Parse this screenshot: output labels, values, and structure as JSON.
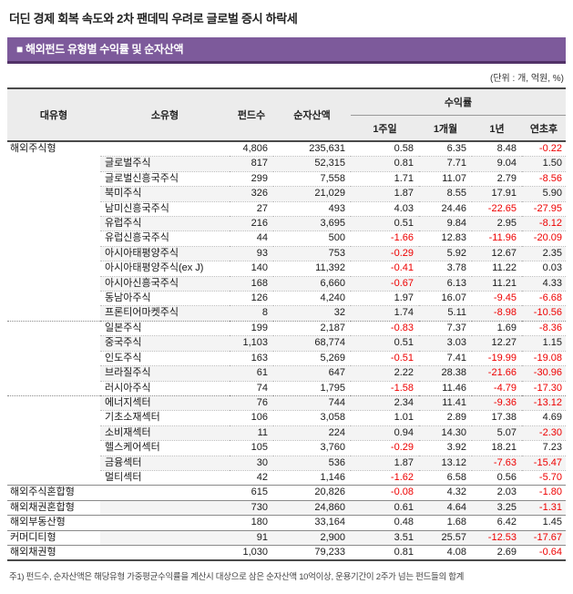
{
  "page": {
    "title": "더딘 경제 회복 속도와 2차 팬데믹 우려로 글로벌 증시 하락세",
    "section_title": "■ 해외펀드 유형별 수익률 및 순자산액",
    "unit_note": "(단위 : 개, 억원, %)",
    "footnote": "주1) 펀드수, 순자산액은 해당유형 가중평균수익률을 계산시 대상으로 삼은 순자산액 10억이상, 운용기간이 2주가 넘는 펀드들의 합계"
  },
  "colors": {
    "accent_purple": "#7d5a9b",
    "accent_purple_dark": "#523268",
    "negative_red": "#ee0000",
    "stripe_gray": "#f4f4f4",
    "header_gray": "#ececec"
  },
  "table": {
    "headers": {
      "col_main": "대유형",
      "col_sub": "소유형",
      "col_count": "펀드수",
      "col_asset": "순자산액",
      "col_return_group": "수익률",
      "col_1w": "1주일",
      "col_1m": "1개월",
      "col_1y": "1년",
      "col_ytd": "연초후"
    },
    "rows": [
      {
        "type": "main",
        "main": "해외주식형",
        "sub": "",
        "count": "4,806",
        "asset": "235,631",
        "r1w": "0.58",
        "r1m": "6.35",
        "r1y": "8.48",
        "ytd": "-0.22"
      },
      {
        "type": "sub",
        "main": "",
        "sub": "글로벌주식",
        "count": "817",
        "asset": "52,315",
        "r1w": "0.81",
        "r1m": "7.71",
        "r1y": "9.04",
        "ytd": "1.50"
      },
      {
        "type": "sub",
        "main": "",
        "sub": "글로벌신흥국주식",
        "count": "299",
        "asset": "7,558",
        "r1w": "1.71",
        "r1m": "11.07",
        "r1y": "2.79",
        "ytd": "-8.56"
      },
      {
        "type": "sub",
        "main": "",
        "sub": "북미주식",
        "count": "326",
        "asset": "21,029",
        "r1w": "1.87",
        "r1m": "8.55",
        "r1y": "17.91",
        "ytd": "5.90"
      },
      {
        "type": "sub",
        "main": "",
        "sub": "남미신흥국주식",
        "count": "27",
        "asset": "493",
        "r1w": "4.03",
        "r1m": "24.46",
        "r1y": "-22.65",
        "ytd": "-27.95"
      },
      {
        "type": "sub",
        "main": "",
        "sub": "유럽주식",
        "count": "216",
        "asset": "3,695",
        "r1w": "0.51",
        "r1m": "9.84",
        "r1y": "2.95",
        "ytd": "-8.12"
      },
      {
        "type": "sub",
        "main": "",
        "sub": "유럽신흥국주식",
        "count": "44",
        "asset": "500",
        "r1w": "-1.66",
        "r1m": "12.83",
        "r1y": "-11.96",
        "ytd": "-20.09"
      },
      {
        "type": "sub",
        "main": "",
        "sub": "아시아태평양주식",
        "count": "93",
        "asset": "753",
        "r1w": "-0.29",
        "r1m": "5.92",
        "r1y": "12.67",
        "ytd": "2.35"
      },
      {
        "type": "sub",
        "main": "",
        "sub": "아시아태평양주식(ex J)",
        "count": "140",
        "asset": "11,392",
        "r1w": "-0.41",
        "r1m": "3.78",
        "r1y": "11.22",
        "ytd": "0.03"
      },
      {
        "type": "sub",
        "main": "",
        "sub": "아시아신흥국주식",
        "count": "168",
        "asset": "6,660",
        "r1w": "-0.67",
        "r1m": "6.13",
        "r1y": "11.21",
        "ytd": "4.33"
      },
      {
        "type": "sub",
        "main": "",
        "sub": "동남아주식",
        "count": "126",
        "asset": "4,240",
        "r1w": "1.97",
        "r1m": "16.07",
        "r1y": "-9.45",
        "ytd": "-6.68"
      },
      {
        "type": "sub",
        "main": "",
        "sub": "프론티어마켓주식",
        "count": "8",
        "asset": "32",
        "r1w": "1.74",
        "r1m": "5.11",
        "r1y": "-8.98",
        "ytd": "-10.56"
      },
      {
        "type": "sub",
        "section_break": true,
        "main": "",
        "sub": "일본주식",
        "count": "199",
        "asset": "2,187",
        "r1w": "-0.83",
        "r1m": "7.37",
        "r1y": "1.69",
        "ytd": "-8.36"
      },
      {
        "type": "sub",
        "main": "",
        "sub": "중국주식",
        "count": "1,103",
        "asset": "68,774",
        "r1w": "0.51",
        "r1m": "3.03",
        "r1y": "12.27",
        "ytd": "1.15"
      },
      {
        "type": "sub",
        "main": "",
        "sub": "인도주식",
        "count": "163",
        "asset": "5,269",
        "r1w": "-0.51",
        "r1m": "7.41",
        "r1y": "-19.99",
        "ytd": "-19.08"
      },
      {
        "type": "sub",
        "main": "",
        "sub": "브라질주식",
        "count": "61",
        "asset": "647",
        "r1w": "2.22",
        "r1m": "28.38",
        "r1y": "-21.66",
        "ytd": "-30.96"
      },
      {
        "type": "sub",
        "main": "",
        "sub": "러시아주식",
        "count": "74",
        "asset": "1,795",
        "r1w": "-1.58",
        "r1m": "11.46",
        "r1y": "-4.79",
        "ytd": "-17.30"
      },
      {
        "type": "sub",
        "section_break": true,
        "main": "",
        "sub": "에너지섹터",
        "count": "76",
        "asset": "744",
        "r1w": "2.34",
        "r1m": "11.41",
        "r1y": "-9.36",
        "ytd": "-13.12"
      },
      {
        "type": "sub",
        "main": "",
        "sub": "기초소재섹터",
        "count": "106",
        "asset": "3,058",
        "r1w": "1.01",
        "r1m": "2.89",
        "r1y": "17.38",
        "ytd": "4.69"
      },
      {
        "type": "sub",
        "main": "",
        "sub": "소비재섹터",
        "count": "11",
        "asset": "224",
        "r1w": "0.94",
        "r1m": "14.30",
        "r1y": "5.07",
        "ytd": "-2.30"
      },
      {
        "type": "sub",
        "main": "",
        "sub": "헬스케어섹터",
        "count": "105",
        "asset": "3,760",
        "r1w": "-0.29",
        "r1m": "3.92",
        "r1y": "18.21",
        "ytd": "7.23"
      },
      {
        "type": "sub",
        "main": "",
        "sub": "금융섹터",
        "count": "30",
        "asset": "536",
        "r1w": "1.87",
        "r1m": "13.12",
        "r1y": "-7.63",
        "ytd": "-15.47"
      },
      {
        "type": "sub",
        "main": "",
        "sub": "멀티섹터",
        "count": "42",
        "asset": "1,146",
        "r1w": "-1.62",
        "r1m": "6.58",
        "r1y": "0.56",
        "ytd": "-5.70"
      },
      {
        "type": "main",
        "main": "해외주식혼합형",
        "sub": "",
        "count": "615",
        "asset": "20,826",
        "r1w": "-0.08",
        "r1m": "4.32",
        "r1y": "2.03",
        "ytd": "-1.80"
      },
      {
        "type": "main",
        "main": "해외채권혼합형",
        "sub": "",
        "count": "730",
        "asset": "24,860",
        "r1w": "0.61",
        "r1m": "4.64",
        "r1y": "3.25",
        "ytd": "-1.31"
      },
      {
        "type": "main",
        "main": "해외부동산형",
        "sub": "",
        "count": "180",
        "asset": "33,164",
        "r1w": "0.48",
        "r1m": "1.68",
        "r1y": "6.42",
        "ytd": "1.45"
      },
      {
        "type": "main",
        "main": "커머디티형",
        "sub": "",
        "count": "91",
        "asset": "2,900",
        "r1w": "3.51",
        "r1m": "25.57",
        "r1y": "-12.53",
        "ytd": "-17.67"
      },
      {
        "type": "main",
        "main": "해외채권형",
        "sub": "",
        "count": "1,030",
        "asset": "79,233",
        "r1w": "0.81",
        "r1m": "4.08",
        "r1y": "2.69",
        "ytd": "-0.64"
      }
    ]
  }
}
